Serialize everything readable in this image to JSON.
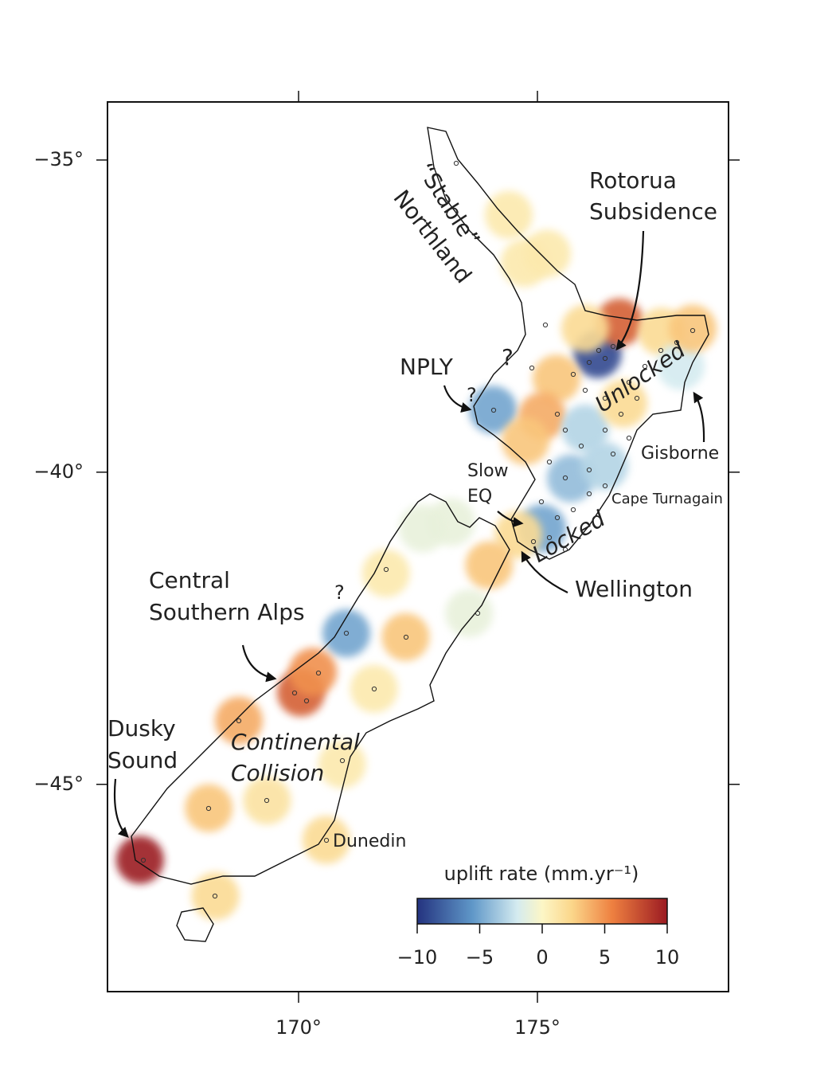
{
  "map": {
    "xlim": [
      166,
      179
    ],
    "ylim": [
      -48.32,
      -34.07
    ],
    "xticks": [
      {
        "value": 170,
        "label": "170°"
      },
      {
        "value": 175,
        "label": "175°"
      }
    ],
    "yticks": [
      {
        "value": -35,
        "label": "−35°"
      },
      {
        "value": -40,
        "label": "−40°"
      },
      {
        "value": -45,
        "label": "−45°"
      }
    ],
    "annotations": [
      "“Stable”",
      "Northland",
      "Rotorua",
      "Subsidence",
      "Unlocked",
      "NPLY",
      "?",
      "Gisborne",
      "Slow",
      "EQ",
      "Cape Turnagain",
      "Locked",
      "Wellington",
      "Central",
      "Southern Alps",
      "?",
      "Continental",
      "Collision",
      "Dusky",
      "Sound",
      "Dunedin",
      "?"
    ],
    "uplift_patches": [
      {
        "lon": 176.26,
        "lat": -38.11,
        "value": -9
      },
      {
        "lon": 176.72,
        "lat": -37.6,
        "value": 7
      },
      {
        "lon": 176.0,
        "lat": -37.7,
        "value": 2
      },
      {
        "lon": 177.6,
        "lat": -37.75,
        "value": 2
      },
      {
        "lon": 178.0,
        "lat": -38.3,
        "value": -2
      },
      {
        "lon": 178.25,
        "lat": -37.7,
        "value": 3
      },
      {
        "lon": 174.07,
        "lat": -39.0,
        "value": -5
      },
      {
        "lon": 175.4,
        "lat": -38.5,
        "value": 3
      },
      {
        "lon": 175.1,
        "lat": -39.1,
        "value": 4
      },
      {
        "lon": 174.75,
        "lat": -39.5,
        "value": 3
      },
      {
        "lon": 176.0,
        "lat": -39.3,
        "value": -3
      },
      {
        "lon": 176.8,
        "lat": -38.9,
        "value": 2
      },
      {
        "lon": 175.7,
        "lat": -40.1,
        "value": -4
      },
      {
        "lon": 176.4,
        "lat": -39.9,
        "value": -3
      },
      {
        "lon": 175.1,
        "lat": -40.9,
        "value": -5
      },
      {
        "lon": 174.6,
        "lat": -41.0,
        "value": 2
      },
      {
        "lon": 174.4,
        "lat": -35.88,
        "value": 1
      },
      {
        "lon": 174.73,
        "lat": -36.65,
        "value": 1
      },
      {
        "lon": 175.2,
        "lat": -36.5,
        "value": 1
      },
      {
        "lon": 173.2,
        "lat": -40.8,
        "value": -1
      },
      {
        "lon": 171.0,
        "lat": -42.58,
        "value": -5
      },
      {
        "lon": 170.05,
        "lat": -43.53,
        "value": 7
      },
      {
        "lon": 170.3,
        "lat": -43.2,
        "value": 5
      },
      {
        "lon": 172.24,
        "lat": -42.64,
        "value": 3
      },
      {
        "lon": 168.75,
        "lat": -43.98,
        "value": 4
      },
      {
        "lon": 166.68,
        "lat": -46.21,
        "value": 10
      },
      {
        "lon": 168.12,
        "lat": -45.38,
        "value": 3
      },
      {
        "lon": 169.34,
        "lat": -45.26,
        "value": 1.5
      },
      {
        "lon": 170.58,
        "lat": -45.89,
        "value": 2
      },
      {
        "lon": 168.26,
        "lat": -46.79,
        "value": 2
      },
      {
        "lon": 171.58,
        "lat": -43.47,
        "value": 1
      },
      {
        "lon": 170.91,
        "lat": -44.68,
        "value": 1
      },
      {
        "lon": 171.83,
        "lat": -41.62,
        "value": 1
      },
      {
        "lon": 173.57,
        "lat": -42.26,
        "value": -1
      },
      {
        "lon": 173.99,
        "lat": -41.49,
        "value": 3
      },
      {
        "lon": 172.6,
        "lat": -40.9,
        "value": -1
      }
    ],
    "colorbar": {
      "label": "uplift rate (mm.yr⁻¹)",
      "lim": [
        -10,
        10
      ],
      "ticks": [
        {
          "value": -10,
          "label": "−10"
        },
        {
          "value": -5,
          "label": "−5"
        },
        0,
        5,
        10
      ]
    }
  }
}
